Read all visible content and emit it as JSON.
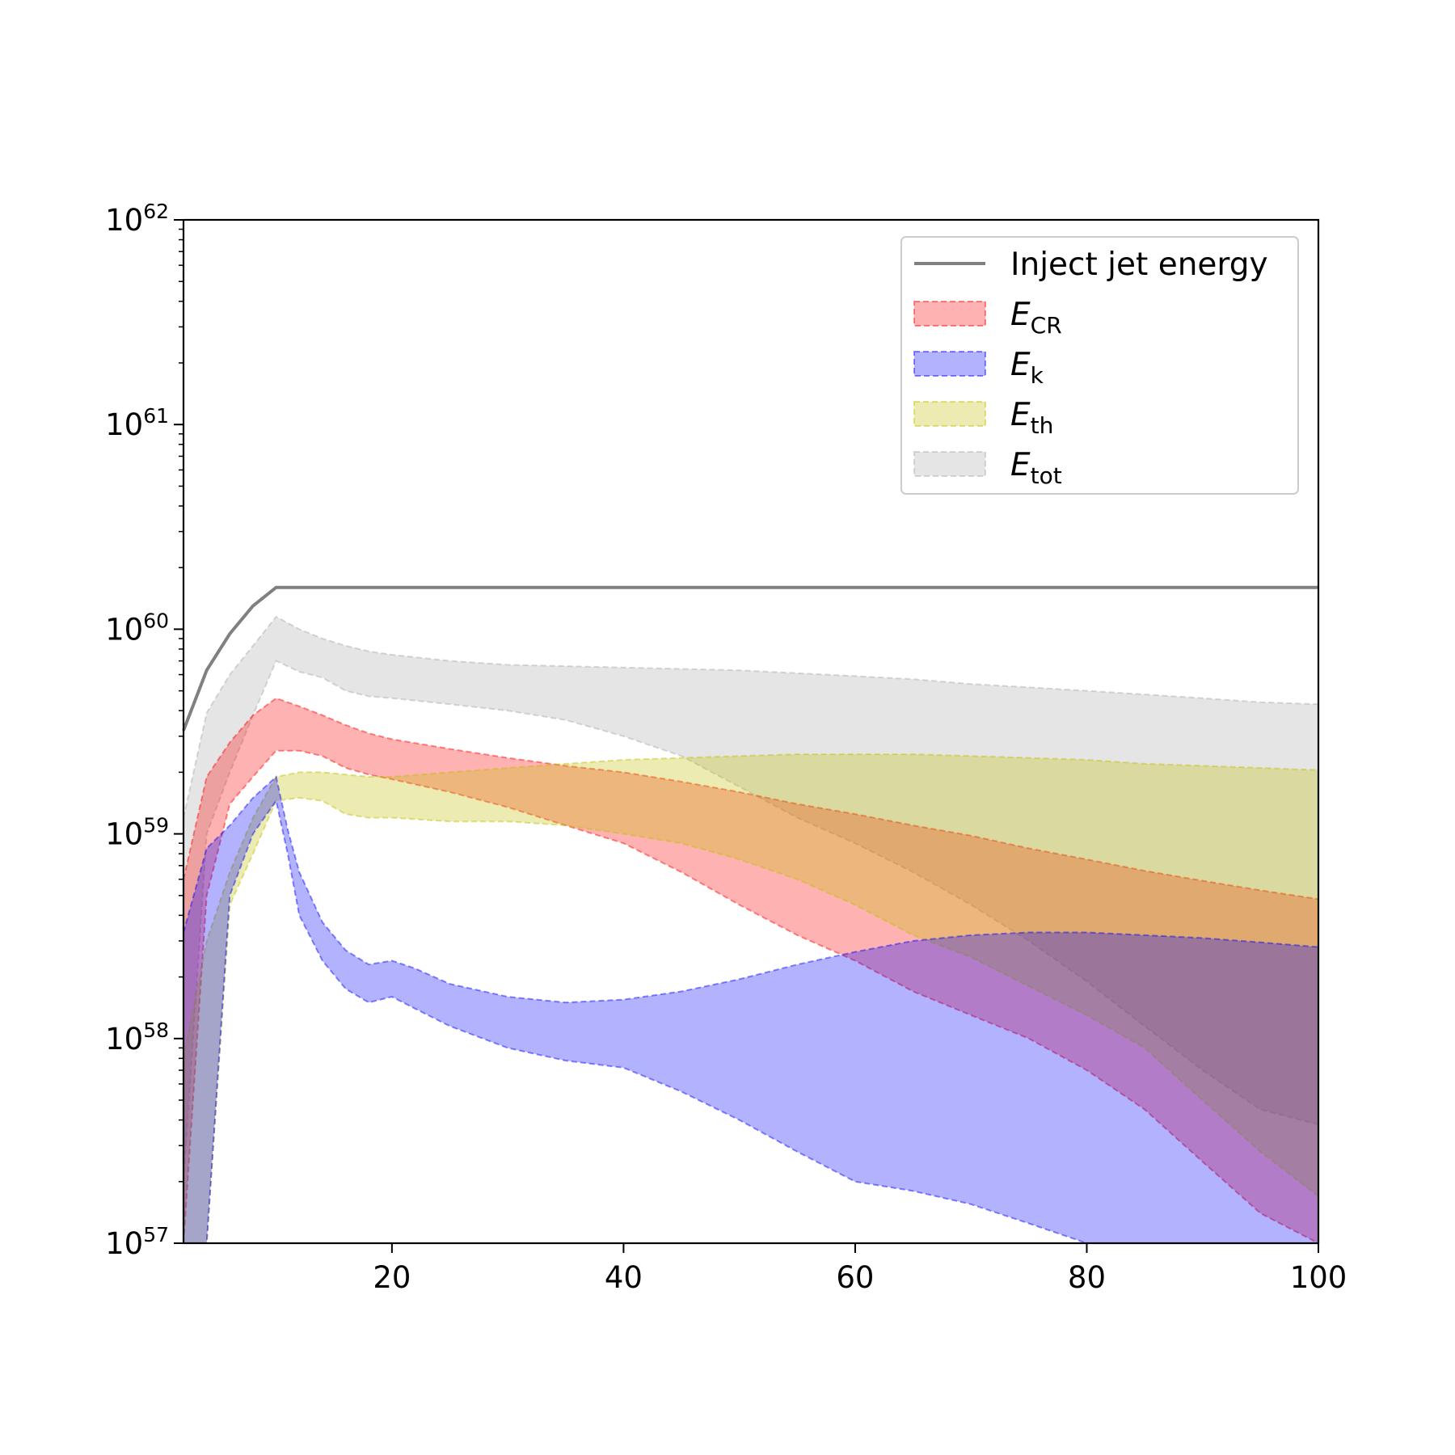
{
  "chart_data": {
    "type": "area",
    "title": "",
    "xlabel": "",
    "ylabel": "",
    "xlim": [
      2,
      100
    ],
    "ylim": [
      1e+57,
      1e+62
    ],
    "yscale": "log",
    "grid": false,
    "legend_position": "top-right",
    "x_ticks": [
      20,
      40,
      60,
      80,
      100
    ],
    "y_ticks": [
      {
        "value": 1e+57,
        "base": "10",
        "exp": "57"
      },
      {
        "value": 1e+58,
        "base": "10",
        "exp": "58"
      },
      {
        "value": 1e+59,
        "base": "10",
        "exp": "59"
      },
      {
        "value": 1e+60,
        "base": "10",
        "exp": "60"
      },
      {
        "value": 1e+61,
        "base": "10",
        "exp": "61"
      },
      {
        "value": 1e+62,
        "base": "10",
        "exp": "62"
      }
    ],
    "line": {
      "name": "Inject jet energy",
      "color": "#808080",
      "x": [
        2,
        4,
        6,
        8,
        10,
        100
      ],
      "y": [
        3.2e+59,
        6.3e+59,
        9.5e+59,
        1.3e+60,
        1.6e+60,
        1.6e+60
      ]
    },
    "bands": [
      {
        "name": "E_tot",
        "label_main": "E",
        "label_sub": "tot",
        "color": "#a9a9a9",
        "x": [
          2,
          4,
          6,
          8,
          10,
          12,
          14,
          16,
          18,
          20,
          25,
          30,
          35,
          40,
          45,
          50,
          55,
          60,
          65,
          70,
          75,
          80,
          85,
          90,
          95,
          100
        ],
        "upper": [
          1.2e+59,
          3.9e+59,
          6e+59,
          8.3e+59,
          1.15e+60,
          1e+60,
          9e+59,
          8.3e+59,
          7.8e+59,
          7.5e+59,
          7e+59,
          6.7e+59,
          6.6e+59,
          6.5e+59,
          6.4e+59,
          6.3e+59,
          6.1e+59,
          5.9e+59,
          5.7e+59,
          5.4e+59,
          5.2e+59,
          5e+59,
          4.8e+59,
          4.6e+59,
          4.4e+59,
          4.3e+59
        ],
        "lower": [
          2e+57,
          1e+59,
          2e+59,
          3.8e+59,
          7e+59,
          6.2e+59,
          5.8e+59,
          5e+59,
          4.7e+59,
          4.6e+59,
          4.3e+59,
          4e+59,
          3.6e+59,
          3e+59,
          2.4e+59,
          1.7e+59,
          1.2e+59,
          9e+58,
          6.5e+58,
          4.5e+58,
          3e+58,
          1.9e+58,
          1.15e+58,
          7e+57,
          4.5e+57,
          3.8e+57
        ]
      },
      {
        "name": "E_CR",
        "label_main": "E",
        "label_sub": "CR",
        "color": "#ff0000",
        "x": [
          2,
          4,
          6,
          8,
          10,
          12,
          14,
          16,
          18,
          20,
          25,
          30,
          35,
          40,
          45,
          50,
          55,
          60,
          65,
          70,
          75,
          80,
          85,
          90,
          95,
          100
        ],
        "upper": [
          6e+58,
          1.9e+59,
          2.8e+59,
          3.8e+59,
          4.6e+59,
          4.2e+59,
          3.8e+59,
          3.4e+59,
          3.1e+59,
          2.9e+59,
          2.6e+59,
          2.35e+59,
          2.15e+59,
          2e+59,
          1.8e+59,
          1.6e+59,
          1.4e+59,
          1.25e+59,
          1.1e+59,
          9.8e+58,
          8.5e+58,
          7.5e+58,
          6.6e+58,
          5.9e+58,
          5.3e+58,
          4.8e+58
        ],
        "lower": [
          1e+57,
          5e+58,
          1.4e+59,
          1.9e+59,
          2.55e+59,
          2.55e+59,
          2.4e+59,
          2.1e+59,
          1.95e+59,
          1.85e+59,
          1.6e+59,
          1.35e+59,
          1.1e+59,
          9e+58,
          6.5e+58,
          4.5e+58,
          3.2e+58,
          2.4e+58,
          1.7e+58,
          1.3e+58,
          1e+58,
          7e+57,
          4.5e+57,
          2.5e+57,
          1.4e+57,
          1e+57
        ]
      },
      {
        "name": "E_th",
        "label_main": "E",
        "label_sub": "th",
        "color": "#bfbf00",
        "x": [
          2,
          4,
          6,
          8,
          10,
          12,
          14,
          16,
          18,
          20,
          25,
          30,
          35,
          40,
          45,
          50,
          55,
          60,
          65,
          70,
          75,
          80,
          85,
          90,
          95,
          100
        ],
        "upper": [
          8e+57,
          3e+58,
          6.5e+58,
          1.2e+59,
          1.9e+59,
          2e+59,
          2e+59,
          1.95e+59,
          1.9e+59,
          1.9e+59,
          2e+59,
          2.1e+59,
          2.2e+59,
          2.3e+59,
          2.35e+59,
          2.4e+59,
          2.45e+59,
          2.45e+59,
          2.45e+59,
          2.4e+59,
          2.35e+59,
          2.3e+59,
          2.2e+59,
          2.15e+59,
          2.1e+59,
          2.05e+59
        ],
        "lower": [
          1e+57,
          1e+57,
          4.5e+58,
          8e+58,
          1.45e+59,
          1.5e+59,
          1.45e+59,
          1.25e+59,
          1.2e+59,
          1.2e+59,
          1.15e+59,
          1.15e+59,
          1.1e+59,
          1e+59,
          9e+58,
          7.5e+58,
          6e+58,
          4.5e+58,
          3.2e+58,
          2.5e+58,
          1.8e+58,
          1.3e+58,
          9e+57,
          5e+57,
          2.8e+57,
          1.7e+57
        ]
      },
      {
        "name": "E_k",
        "label_main": "E",
        "label_sub": "k",
        "color": "#0000ff",
        "x": [
          2,
          4,
          6,
          8,
          10,
          11,
          12,
          14,
          16,
          18,
          19,
          20,
          22,
          25,
          30,
          35,
          40,
          45,
          50,
          55,
          60,
          65,
          70,
          75,
          80,
          85,
          90,
          95,
          100
        ],
        "upper": [
          3.3e+58,
          8.5e+58,
          1.1e+59,
          1.5e+59,
          1.9e+59,
          1.05e+59,
          6.5e+58,
          3.7e+58,
          2.7e+58,
          2.3e+58,
          2.35e+58,
          2.4e+58,
          2.2e+58,
          1.85e+58,
          1.6e+58,
          1.5e+58,
          1.55e+58,
          1.7e+58,
          1.95e+58,
          2.3e+58,
          2.65e+58,
          3e+58,
          3.2e+58,
          3.3e+58,
          3.3e+58,
          3.2e+58,
          3.1e+58,
          2.95e+58,
          2.8e+58
        ],
        "lower": [
          1e+57,
          1e+57,
          5e+58,
          1e+59,
          1.45e+59,
          8e+58,
          4e+58,
          2.4e+58,
          1.75e+58,
          1.5e+58,
          1.55e+58,
          1.6e+58,
          1.4e+58,
          1.15e+58,
          9e+57,
          7.8e+57,
          7.2e+57,
          5.5e+57,
          4e+57,
          2.8e+57,
          2e+57,
          1.8e+57,
          1.55e+57,
          1.25e+57,
          1e+57,
          1e+57,
          1e+57,
          1e+57,
          1e+57
        ]
      }
    ],
    "legend_order": [
      "Inject jet energy",
      "E_CR",
      "E_k",
      "E_th",
      "E_tot"
    ]
  }
}
